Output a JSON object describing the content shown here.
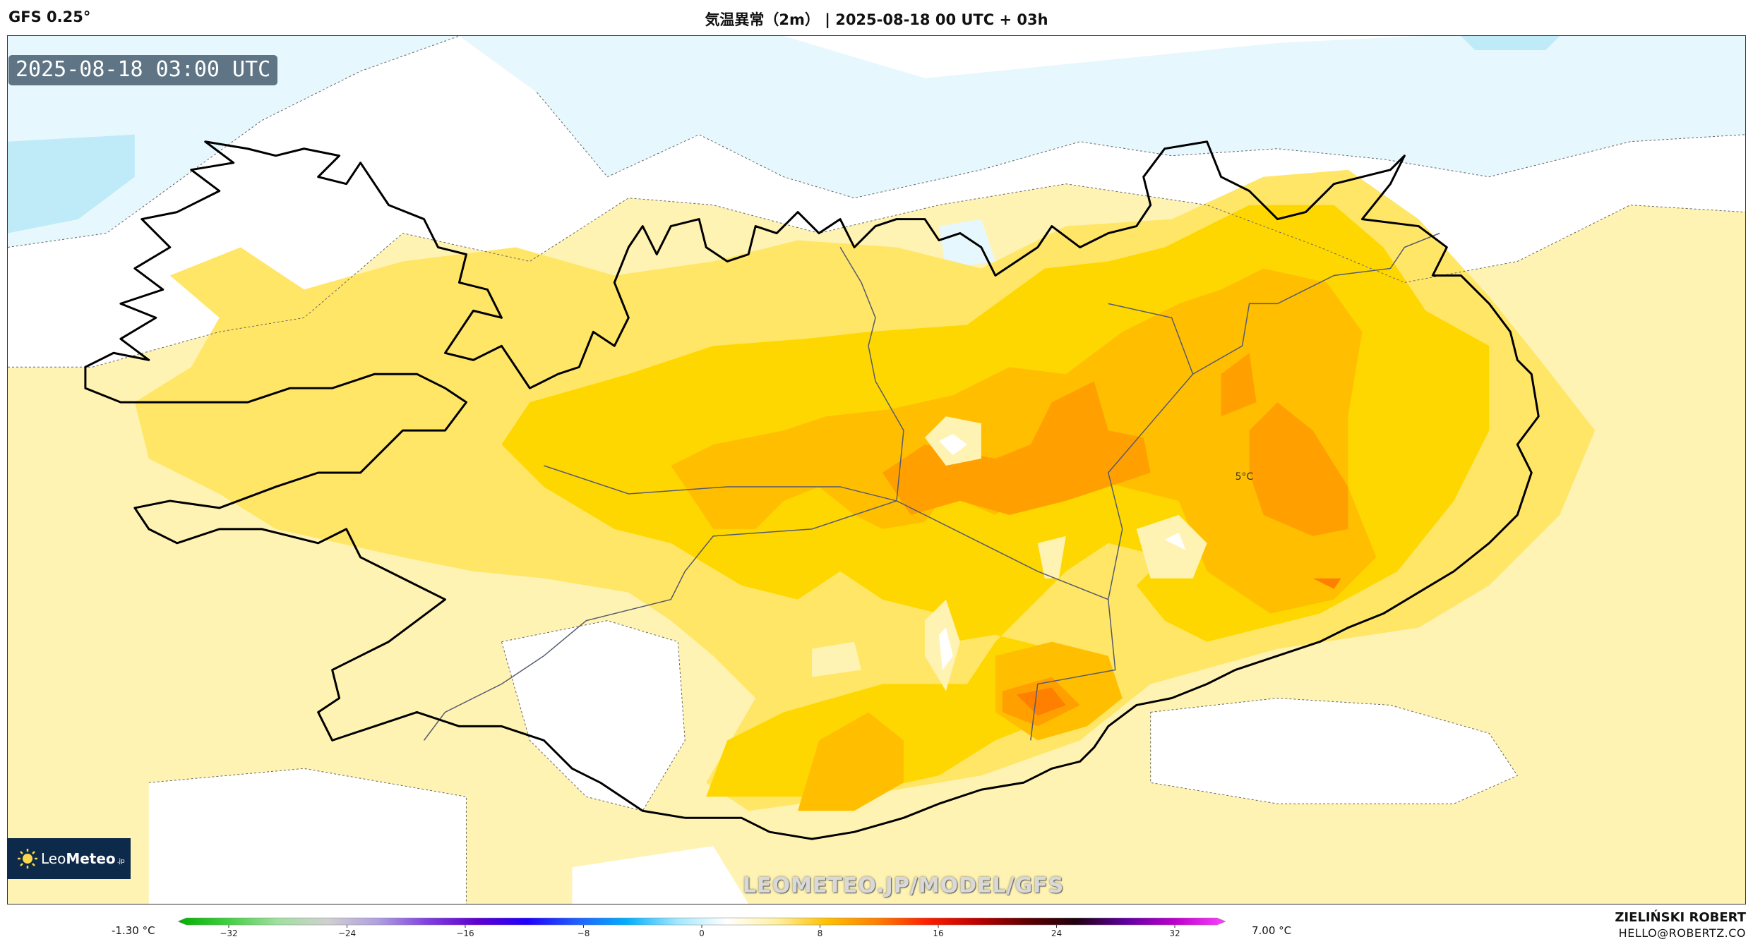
{
  "header": {
    "model": "GFS 0.25°",
    "title": "気温異常（2m） | 2025-08-18 00 UTC + 03h"
  },
  "map": {
    "valid_time": "2025-08-18 03:00 UTC",
    "contour_label": "5°C",
    "watermark": "LEOMETEO.JP/MODEL/GFS",
    "colors": {
      "cold_1": "#e6f7fd",
      "cold_2": "#bfeaf8",
      "neutral": "#ffffff",
      "warm_1": "#fff3b3",
      "warm_2": "#ffe666",
      "warm_3": "#ffd700",
      "warm_4": "#ffbf00",
      "warm_5": "#ffa000",
      "warm_6": "#ff8000",
      "coastline": "#000000",
      "borders": "#555a6e"
    }
  },
  "logo": {
    "name_light": "Leo",
    "name_bold": "Meteo",
    "suffix": ".jp"
  },
  "colorbar": {
    "min_label": "-1.30 °C",
    "max_label": "7.00 °C",
    "ticks": [
      "−32",
      "−24",
      "−16",
      "−8",
      "0",
      "8",
      "16",
      "24",
      "32"
    ],
    "gradient": [
      "#00b000",
      "#40d040",
      "#a0e0a0",
      "#d0d0d0",
      "#b0a0e0",
      "#8040e0",
      "#6000d0",
      "#2000ff",
      "#2060ff",
      "#00b0ff",
      "#a0e8ff",
      "#ffffff",
      "#fff0a0",
      "#ffc000",
      "#ff8000",
      "#ff2000",
      "#c00000",
      "#600000",
      "#200010",
      "#6000a0",
      "#c000d0",
      "#ff40ff"
    ]
  },
  "author": {
    "name": "ZIELIŃSKI ROBERT",
    "email": "HELLO@ROBERTZ.CO"
  }
}
